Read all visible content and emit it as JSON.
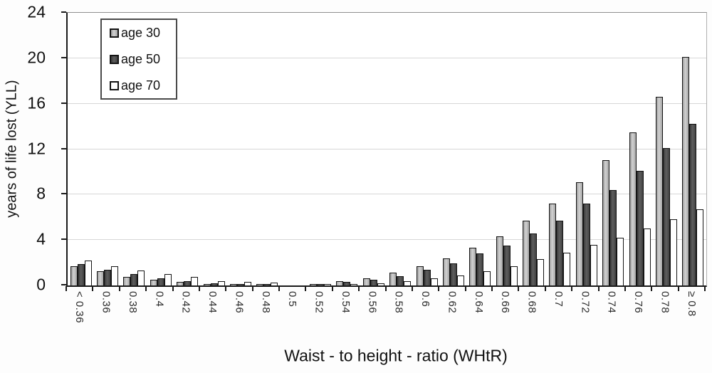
{
  "chart_data": {
    "type": "bar",
    "title": "",
    "xlabel": "Waist - to height - ratio (WHtR)",
    "ylabel": "years of life lost (YLL)",
    "ylim": [
      0,
      24
    ],
    "y_ticks": [
      0,
      4,
      8,
      12,
      16,
      20,
      24
    ],
    "grid": true,
    "legend_position": "top-left",
    "categories": [
      "< 0.36",
      "0.36",
      "0.38",
      "0.4",
      "0.42",
      "0.44",
      "0.46",
      "0.48",
      "0.5",
      "0.52",
      "0.54",
      "0.56",
      "0.58",
      "0.6",
      "0.62",
      "0.64",
      "0.66",
      "0.68",
      "0.7",
      "0.72",
      "0.74",
      "0.76",
      "0.78",
      "≥ 0.8"
    ],
    "series": [
      {
        "name": "age 30",
        "color": "#b3b3b3",
        "values": [
          1.7,
          1.25,
          0.75,
          0.5,
          0.3,
          0.15,
          0.05,
          0.05,
          0,
          0.05,
          0.35,
          0.65,
          1.1,
          1.7,
          2.4,
          3.3,
          4.3,
          5.7,
          7.2,
          9.1,
          11.0,
          13.5,
          16.6,
          20.1
        ]
      },
      {
        "name": "age 50",
        "color": "#4a4a4a",
        "values": [
          1.9,
          1.35,
          1.0,
          0.65,
          0.4,
          0.2,
          0.1,
          0.1,
          0,
          0.15,
          0.3,
          0.5,
          0.8,
          1.4,
          1.95,
          2.8,
          3.5,
          4.6,
          5.7,
          7.2,
          8.4,
          10.1,
          12.1,
          14.2
        ]
      },
      {
        "name": "age 70",
        "color": "#ffffff",
        "values": [
          2.2,
          1.7,
          1.3,
          1.0,
          0.75,
          0.4,
          0.3,
          0.25,
          0,
          0.1,
          0.15,
          0.2,
          0.35,
          0.6,
          0.9,
          1.25,
          1.7,
          2.3,
          2.9,
          3.6,
          4.2,
          5.0,
          5.8,
          6.7
        ]
      }
    ]
  },
  "colors": {
    "axis": "#1a1a1a",
    "gridline": "#d7d7d7",
    "frame_top": "#8f8f8f",
    "bar_outline": "#141414"
  }
}
